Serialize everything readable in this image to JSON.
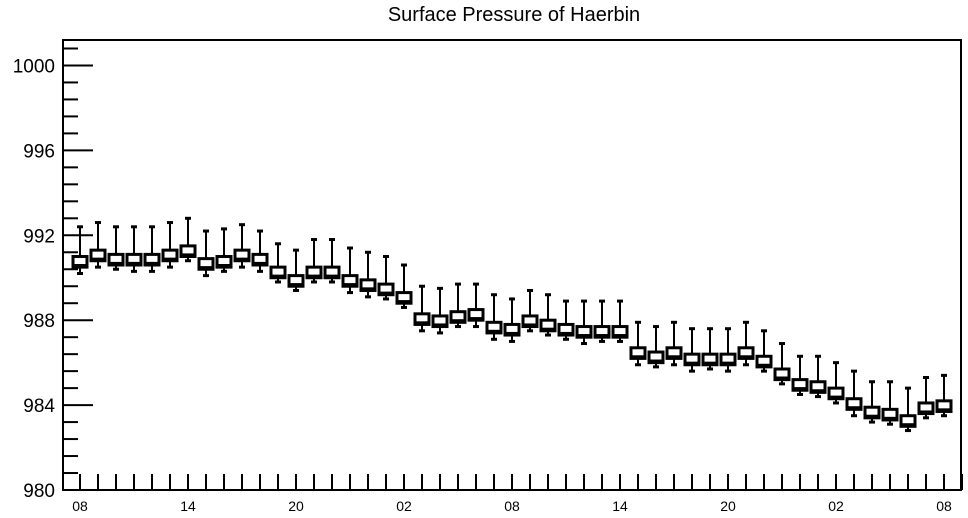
{
  "chart_data": {
    "type": "boxplot",
    "title": "Surface Pressure of Haerbin",
    "xlabel": "",
    "ylabel": "",
    "ylim": [
      980,
      1001.2
    ],
    "y_ticks": [
      980,
      984,
      988,
      992,
      996,
      1000
    ],
    "y_tick_labels": [
      "980",
      "984",
      "988",
      "992",
      "996",
      "1000"
    ],
    "x_range": [
      0,
      49
    ],
    "x_ticks": [
      0,
      6,
      12,
      18,
      24,
      30,
      36,
      42,
      48
    ],
    "x_tick_labels": [
      "08",
      "14",
      "20",
      "02",
      "08",
      "14",
      "20",
      "02",
      "08"
    ],
    "grid": false,
    "series": [
      {
        "box_color": "#000000",
        "x": [
          0,
          1,
          2,
          3,
          4,
          5,
          6,
          7,
          8,
          9,
          10,
          11,
          12,
          13,
          14,
          15,
          16,
          17,
          18,
          19,
          20,
          21,
          22,
          23,
          24,
          25,
          26,
          27,
          28,
          29,
          30,
          31,
          32,
          33,
          34,
          35,
          36,
          37,
          38,
          39,
          40,
          41,
          42,
          43,
          44,
          45,
          46,
          47,
          48
        ],
        "q1": [
          990.5,
          990.8,
          990.6,
          990.6,
          990.6,
          990.8,
          991.0,
          990.4,
          990.5,
          990.8,
          990.6,
          990.0,
          989.6,
          990.0,
          990.0,
          989.6,
          989.4,
          989.2,
          988.8,
          987.8,
          987.7,
          987.9,
          988.0,
          987.4,
          987.3,
          987.7,
          987.5,
          987.3,
          987.2,
          987.2,
          987.2,
          986.2,
          986.0,
          986.2,
          985.9,
          985.9,
          985.9,
          986.2,
          985.8,
          985.2,
          984.7,
          984.6,
          984.3,
          983.8,
          983.4,
          983.3,
          983.0,
          983.6,
          983.7
        ],
        "median": [
          990.6,
          990.9,
          990.7,
          990.7,
          990.7,
          990.9,
          991.1,
          990.5,
          990.6,
          990.9,
          990.7,
          990.1,
          989.7,
          990.1,
          990.1,
          989.7,
          989.5,
          989.3,
          988.9,
          987.9,
          987.8,
          988.0,
          988.1,
          987.5,
          987.4,
          987.8,
          987.6,
          987.4,
          987.3,
          987.3,
          987.3,
          986.3,
          986.1,
          986.3,
          986.0,
          986.0,
          986.0,
          986.3,
          985.9,
          985.3,
          984.8,
          984.7,
          984.4,
          983.9,
          983.5,
          983.4,
          983.1,
          983.7,
          983.8
        ],
        "q3": [
          991.0,
          991.3,
          991.1,
          991.1,
          991.1,
          991.3,
          991.5,
          990.9,
          991.0,
          991.3,
          991.1,
          990.5,
          990.1,
          990.5,
          990.5,
          990.1,
          989.9,
          989.7,
          989.3,
          988.3,
          988.2,
          988.4,
          988.5,
          987.9,
          987.8,
          988.2,
          988.0,
          987.8,
          987.7,
          987.7,
          987.7,
          986.7,
          986.5,
          986.7,
          986.4,
          986.4,
          986.4,
          986.7,
          986.3,
          985.7,
          985.2,
          985.1,
          984.8,
          984.3,
          983.9,
          983.8,
          983.5,
          984.1,
          984.2
        ],
        "min": [
          990.2,
          990.5,
          990.4,
          990.3,
          990.3,
          990.5,
          990.8,
          990.1,
          990.3,
          990.5,
          990.3,
          989.8,
          989.4,
          989.8,
          989.8,
          989.3,
          989.1,
          989.0,
          988.6,
          987.5,
          987.4,
          987.7,
          987.7,
          987.1,
          987.0,
          987.5,
          987.3,
          987.1,
          986.9,
          987.0,
          987.0,
          985.9,
          985.8,
          985.9,
          985.6,
          985.7,
          985.6,
          985.9,
          985.6,
          985.0,
          984.5,
          984.4,
          984.1,
          983.5,
          983.2,
          983.1,
          982.8,
          983.4,
          983.5
        ],
        "max": [
          992.4,
          992.6,
          992.4,
          992.4,
          992.4,
          992.6,
          992.8,
          992.2,
          992.3,
          992.5,
          992.2,
          991.6,
          991.3,
          991.8,
          991.8,
          991.4,
          991.2,
          991.0,
          990.6,
          989.6,
          989.5,
          989.7,
          989.7,
          989.2,
          989.0,
          989.4,
          989.2,
          988.9,
          988.9,
          988.9,
          988.9,
          987.9,
          987.7,
          987.9,
          987.6,
          987.6,
          987.6,
          987.9,
          987.5,
          986.9,
          986.3,
          986.3,
          986.0,
          985.6,
          985.1,
          985.1,
          984.8,
          985.3,
          985.4
        ]
      }
    ]
  }
}
